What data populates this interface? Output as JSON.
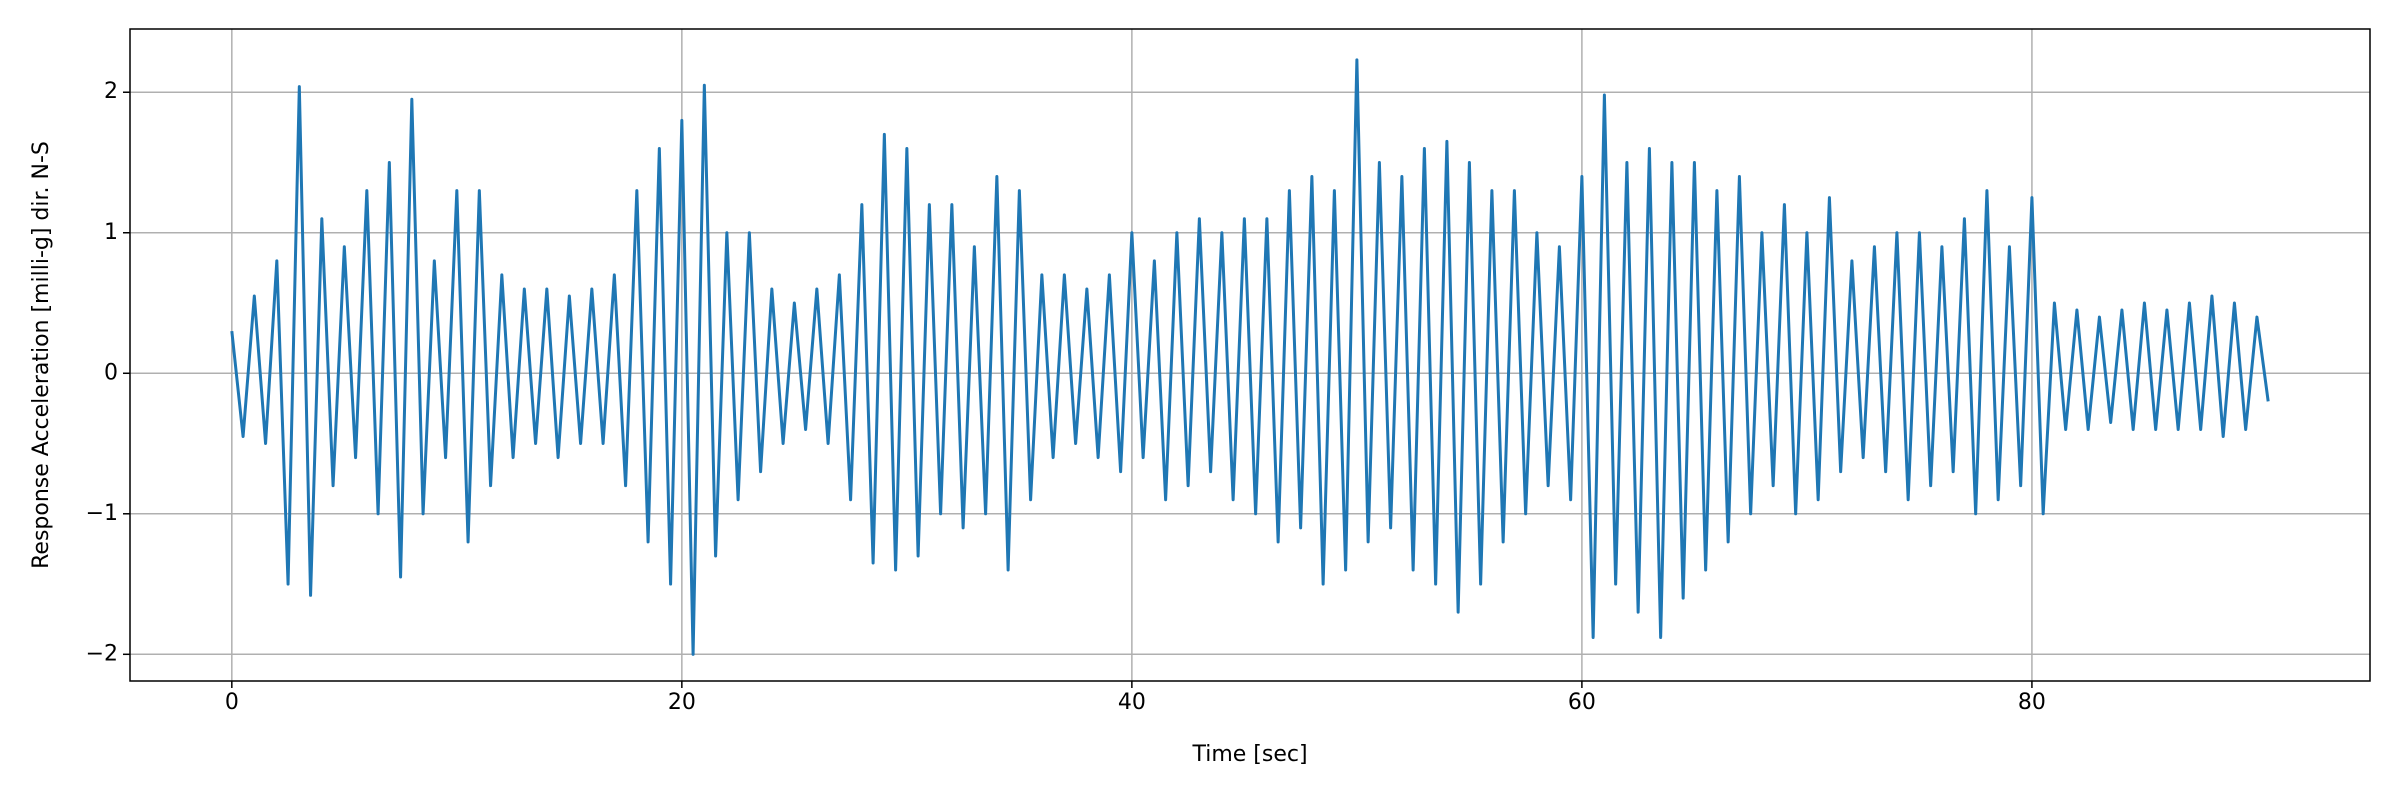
{
  "chart_data": {
    "type": "line",
    "xlabel": "Time [sec]",
    "ylabel": "Response Acceleration [milli-g] dir. N-S",
    "color": "#1f77b4",
    "grid": true,
    "xlim": [
      -4.525,
      95.025
    ],
    "ylim": [
      -2.19,
      2.45
    ],
    "xticks": [
      0,
      20,
      40,
      60,
      80
    ],
    "yticks": [
      {
        "value": -2,
        "label": "−2"
      },
      {
        "value": -1,
        "label": "−1"
      },
      0,
      1,
      2
    ],
    "x": [
      0,
      0.5,
      1,
      1.5,
      2,
      2.5,
      3,
      3.5,
      4,
      4.5,
      5,
      5.5,
      6,
      6.5,
      7,
      7.5,
      8,
      8.5,
      9,
      9.5,
      10,
      10.5,
      11,
      11.5,
      12,
      12.5,
      13,
      13.5,
      14,
      14.5,
      15,
      15.5,
      16,
      16.5,
      17,
      17.5,
      18,
      18.5,
      19,
      19.5,
      20,
      20.5,
      21,
      21.5,
      22,
      22.5,
      23,
      23.5,
      24,
      24.5,
      25,
      25.5,
      26,
      26.5,
      27,
      27.5,
      28,
      28.5,
      29,
      29.5,
      30,
      30.5,
      31,
      31.5,
      32,
      32.5,
      33,
      33.5,
      34,
      34.5,
      35,
      35.5,
      36,
      36.5,
      37,
      37.5,
      38,
      38.5,
      39,
      39.5,
      40,
      40.5,
      41,
      41.5,
      42,
      42.5,
      43,
      43.5,
      44,
      44.5,
      45,
      45.5,
      46,
      46.5,
      47,
      47.5,
      48,
      48.5,
      49,
      49.5,
      50,
      50.5,
      51,
      51.5,
      52,
      52.5,
      53,
      53.5,
      54,
      54.5,
      55,
      55.5,
      56,
      56.5,
      57,
      57.5,
      58,
      58.5,
      59,
      59.5,
      60,
      60.5,
      61,
      61.5,
      62,
      62.5,
      63,
      63.5,
      64,
      64.5,
      65,
      65.5,
      66,
      66.5,
      67,
      67.5,
      68,
      68.5,
      69,
      69.5,
      70,
      70.5,
      71,
      71.5,
      72,
      72.5,
      73,
      73.5,
      74,
      74.5,
      75,
      75.5,
      76,
      76.5,
      77,
      77.5,
      78,
      78.5,
      79,
      79.5,
      80,
      80.5,
      81,
      81.5,
      82,
      82.5,
      83,
      83.5,
      84,
      84.5,
      85,
      85.5,
      86,
      86.5,
      87,
      87.5,
      88,
      88.5,
      89,
      89.5,
      90,
      90.5
    ],
    "values": [
      0.3,
      -0.45,
      0.55,
      -0.5,
      0.8,
      -1.5,
      2.04,
      -1.58,
      1.1,
      -0.8,
      0.9,
      -0.6,
      1.3,
      -1.0,
      1.5,
      -1.45,
      1.95,
      -1.0,
      0.8,
      -0.6,
      1.3,
      -1.2,
      1.3,
      -0.8,
      0.7,
      -0.6,
      0.6,
      -0.5,
      0.6,
      -0.6,
      0.55,
      -0.5,
      0.6,
      -0.5,
      0.7,
      -0.8,
      1.3,
      -1.2,
      1.6,
      -1.5,
      1.8,
      -2.0,
      2.05,
      -1.3,
      1.0,
      -0.9,
      1.0,
      -0.7,
      0.6,
      -0.5,
      0.5,
      -0.4,
      0.6,
      -0.5,
      0.7,
      -0.9,
      1.2,
      -1.35,
      1.7,
      -1.4,
      1.6,
      -1.3,
      1.2,
      -1.0,
      1.2,
      -1.1,
      0.9,
      -1.0,
      1.4,
      -1.4,
      1.3,
      -0.9,
      0.7,
      -0.6,
      0.7,
      -0.5,
      0.6,
      -0.6,
      0.7,
      -0.7,
      1.0,
      -0.6,
      0.8,
      -0.9,
      1.0,
      -0.8,
      1.1,
      -0.7,
      1.0,
      -0.9,
      1.1,
      -1.0,
      1.1,
      -1.2,
      1.3,
      -1.1,
      1.4,
      -1.5,
      1.3,
      -1.4,
      2.23,
      -1.2,
      1.5,
      -1.1,
      1.4,
      -1.4,
      1.6,
      -1.5,
      1.65,
      -1.7,
      1.5,
      -1.5,
      1.3,
      -1.2,
      1.3,
      -1.0,
      1.0,
      -0.8,
      0.9,
      -0.9,
      1.4,
      -1.88,
      1.98,
      -1.5,
      1.5,
      -1.7,
      1.6,
      -1.88,
      1.5,
      -1.6,
      1.5,
      -1.4,
      1.3,
      -1.2,
      1.4,
      -1.0,
      1.0,
      -0.8,
      1.2,
      -1.0,
      1.0,
      -0.9,
      1.25,
      -0.7,
      0.8,
      -0.6,
      0.9,
      -0.7,
      1.0,
      -0.9,
      1.0,
      -0.8,
      0.9,
      -0.7,
      1.1,
      -1.0,
      1.3,
      -0.9,
      0.9,
      -0.8,
      1.25,
      -1.0,
      0.5,
      -0.4,
      0.45,
      -0.4,
      0.4,
      -0.35,
      0.45,
      -0.4,
      0.5,
      -0.4,
      0.45,
      -0.4,
      0.5,
      -0.4,
      0.55,
      -0.45,
      0.5,
      -0.4,
      0.4,
      -0.2
    ]
  }
}
